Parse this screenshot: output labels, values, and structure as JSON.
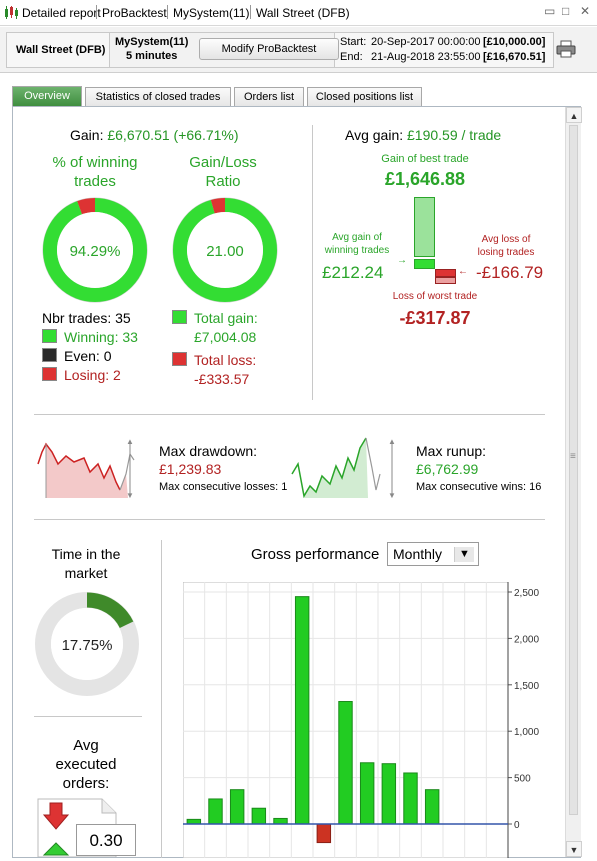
{
  "window": {
    "tab_labels": [
      "Detailed report",
      "ProBacktest",
      "MySystem(11)",
      "Wall Street (DFB)"
    ],
    "controls": [
      "▭",
      "□",
      "✕"
    ]
  },
  "infobar": {
    "instrument": "Wall Street (DFB)",
    "system_name": "MySystem(11)",
    "timeframe": "5 minutes",
    "modify_button": "Modify ProBacktest",
    "start_label": "Start:",
    "start_date": "20-Sep-2017 00:00:00",
    "start_capital": "[£10,000.00]",
    "end_label": "End:",
    "end_date": "21-Aug-2018 23:55:00",
    "end_capital": "[£16,670.51]"
  },
  "tabs": [
    "Overview",
    "Statistics of closed trades",
    "Orders list",
    "Closed positions list"
  ],
  "overview": {
    "gain_label": "Gain:",
    "gain_value": "£6,670.51 (+66.71%)",
    "winning_title_1": "% of winning",
    "winning_title_2": "trades",
    "winning_pct": "94.29%",
    "winning_fraction": 0.9429,
    "ratio_title_1": "Gain/Loss",
    "ratio_title_2": "Ratio",
    "ratio_value": "21.00",
    "ratio_fill": 0.9545,
    "nbr_trades": "Nbr trades: 35",
    "winning": "Winning: 33",
    "even": "Even: 0",
    "losing": "Losing: 2",
    "total_gain_label": "Total gain:",
    "total_gain_value": "£7,004.08",
    "total_loss_label": "Total loss:",
    "total_loss_value": "-£333.57",
    "avg_gain_label": "Avg gain:",
    "avg_gain_value": "£190.59 / trade",
    "best_trade_label": "Gain of best trade",
    "best_trade_value": "£1,646.88",
    "avg_win_label_1": "Avg gain of",
    "avg_win_label_2": "winning trades",
    "avg_win_value": "£212.24",
    "avg_loss_label_1": "Avg loss of",
    "avg_loss_label_2": "losing trades",
    "avg_loss_value": "-£166.79",
    "worst_trade_label": "Loss of worst trade",
    "worst_trade_value": "-£317.87",
    "drawdown_label": "Max drawdown:",
    "drawdown_value": "£1,239.83",
    "consec_losses": "Max consecutive losses: 1",
    "runup_label": "Max runup:",
    "runup_value": "£6,762.99",
    "consec_wins": "Max consecutive wins: 16",
    "time_market_1": "Time in the",
    "time_market_2": "market",
    "time_market_pct": "17.75%",
    "time_market_fraction": 0.1775,
    "avg_exec_1": "Avg",
    "avg_exec_2": "executed",
    "avg_exec_3": "orders:",
    "avg_exec_value": "0.30",
    "gross_perf_label": "Gross performance",
    "period_select": "Monthly"
  },
  "colors": {
    "green": "#2aa52a",
    "bar_green": "#22cc22",
    "red": "#b22222",
    "bar_red": "#cc3322",
    "tab_active": "#4c9a4c"
  },
  "chart_data": {
    "type": "bar",
    "categories": [
      "",
      "",
      "",
      "",
      "",
      "",
      "",
      "",
      "",
      "",
      "",
      "",
      "",
      "",
      ""
    ],
    "values": [
      50,
      270,
      370,
      170,
      60,
      2450,
      -200,
      1320,
      660,
      650,
      550,
      370,
      0,
      0,
      0
    ],
    "yticks": [
      "2,500",
      "2,000",
      "1,500",
      "1,000",
      "500",
      "0"
    ],
    "ylim": [
      -280,
      2500
    ]
  }
}
